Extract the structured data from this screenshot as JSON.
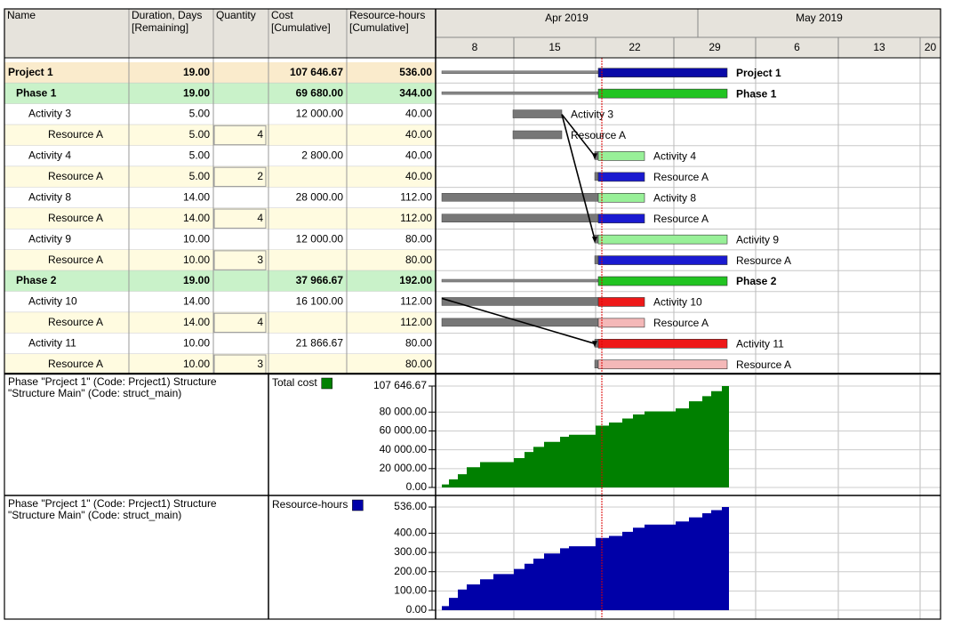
{
  "table": {
    "header": [
      [
        "Name"
      ],
      [
        "Duration, Days",
        "[Remaining]"
      ],
      [
        "Quantity"
      ],
      [
        "Cost",
        "[Cumulative]"
      ],
      [
        "Resource-hours",
        "[Cumulative]"
      ]
    ],
    "rows": [
      {
        "type": "project",
        "name": "Project 1",
        "duration": "19.00",
        "quantity": null,
        "cost": "107 646.67",
        "hours": "536.00"
      },
      {
        "type": "phase",
        "name": "Phase 1",
        "duration": "19.00",
        "quantity": null,
        "cost": "69 680.00",
        "hours": "344.00"
      },
      {
        "type": "activity",
        "name": "Activity 3",
        "duration": "5.00",
        "quantity": null,
        "cost": "12 000.00",
        "hours": "40.00"
      },
      {
        "type": "resource",
        "name": "Resource A",
        "duration": "5.00",
        "quantity": 4,
        "cost": null,
        "hours": "40.00"
      },
      {
        "type": "activity",
        "name": "Activity 4",
        "duration": "5.00",
        "quantity": null,
        "cost": "2 800.00",
        "hours": "40.00"
      },
      {
        "type": "resource",
        "name": "Resource A",
        "duration": "5.00",
        "quantity": 2,
        "cost": null,
        "hours": "40.00"
      },
      {
        "type": "activity",
        "name": "Activity 8",
        "duration": "14.00",
        "quantity": null,
        "cost": "28 000.00",
        "hours": "112.00"
      },
      {
        "type": "resource",
        "name": "Resource A",
        "duration": "14.00",
        "quantity": 4,
        "cost": null,
        "hours": "112.00"
      },
      {
        "type": "activity",
        "name": "Activity 9",
        "duration": "10.00",
        "quantity": null,
        "cost": "12 000.00",
        "hours": "80.00"
      },
      {
        "type": "resource",
        "name": "Resource A",
        "duration": "10.00",
        "quantity": 3,
        "cost": null,
        "hours": "80.00"
      },
      {
        "type": "phase",
        "name": "Phase 2",
        "duration": "19.00",
        "quantity": null,
        "cost": "37 966.67",
        "hours": "192.00"
      },
      {
        "type": "activity",
        "name": "Activity 10",
        "duration": "14.00",
        "quantity": null,
        "cost": "16 100.00",
        "hours": "112.00"
      },
      {
        "type": "resource",
        "name": "Resource A",
        "duration": "14.00",
        "quantity": 4,
        "cost": null,
        "hours": "112.00"
      },
      {
        "type": "activity",
        "name": "Activity 11",
        "duration": "10.00",
        "quantity": null,
        "cost": "21 866.67",
        "hours": "80.00"
      },
      {
        "type": "resource",
        "name": "Resource A",
        "duration": "10.00",
        "quantity": 3,
        "cost": null,
        "hours": "80.00"
      }
    ]
  },
  "timeline": {
    "months": [
      "Apr 2019",
      "May 2019"
    ],
    "days": [
      "8",
      "15",
      "22",
      "29",
      "6",
      "13",
      "20"
    ]
  },
  "charts": [
    {
      "structure": [
        "Phase \"Prcject 1\" (Code: Prcject1) Structure",
        "\"Structure Main\" (Code: struct_main)"
      ],
      "legend": "Total cost",
      "color": "#008000",
      "ylim": [
        0,
        107646.67
      ],
      "yticks": [
        {
          "value": 0,
          "label": "0.00"
        },
        {
          "value": 20000,
          "label": "20 000.00"
        },
        {
          "value": 40000,
          "label": "40 000.00"
        },
        {
          "value": 60000,
          "label": "60 000.00"
        },
        {
          "value": 80000,
          "label": "80 000.00"
        },
        {
          "value": 107646.67,
          "label": "107 646.67"
        }
      ]
    },
    {
      "structure": [
        "Phase \"Prcject 1\" (Code: Prcject1) Structure",
        "\"Structure Main\" (Code: struct_main)"
      ],
      "legend": "Resource-hours",
      "color": "#0000a8",
      "ylim": [
        0,
        536
      ],
      "yticks": [
        {
          "value": 0,
          "label": "0.00"
        },
        {
          "value": 100,
          "label": "100.00"
        },
        {
          "value": 200,
          "label": "200.00"
        },
        {
          "value": 300,
          "label": "300.00"
        },
        {
          "value": 400,
          "label": "400.00"
        },
        {
          "value": 536,
          "label": "536.00"
        }
      ]
    }
  ]
}
